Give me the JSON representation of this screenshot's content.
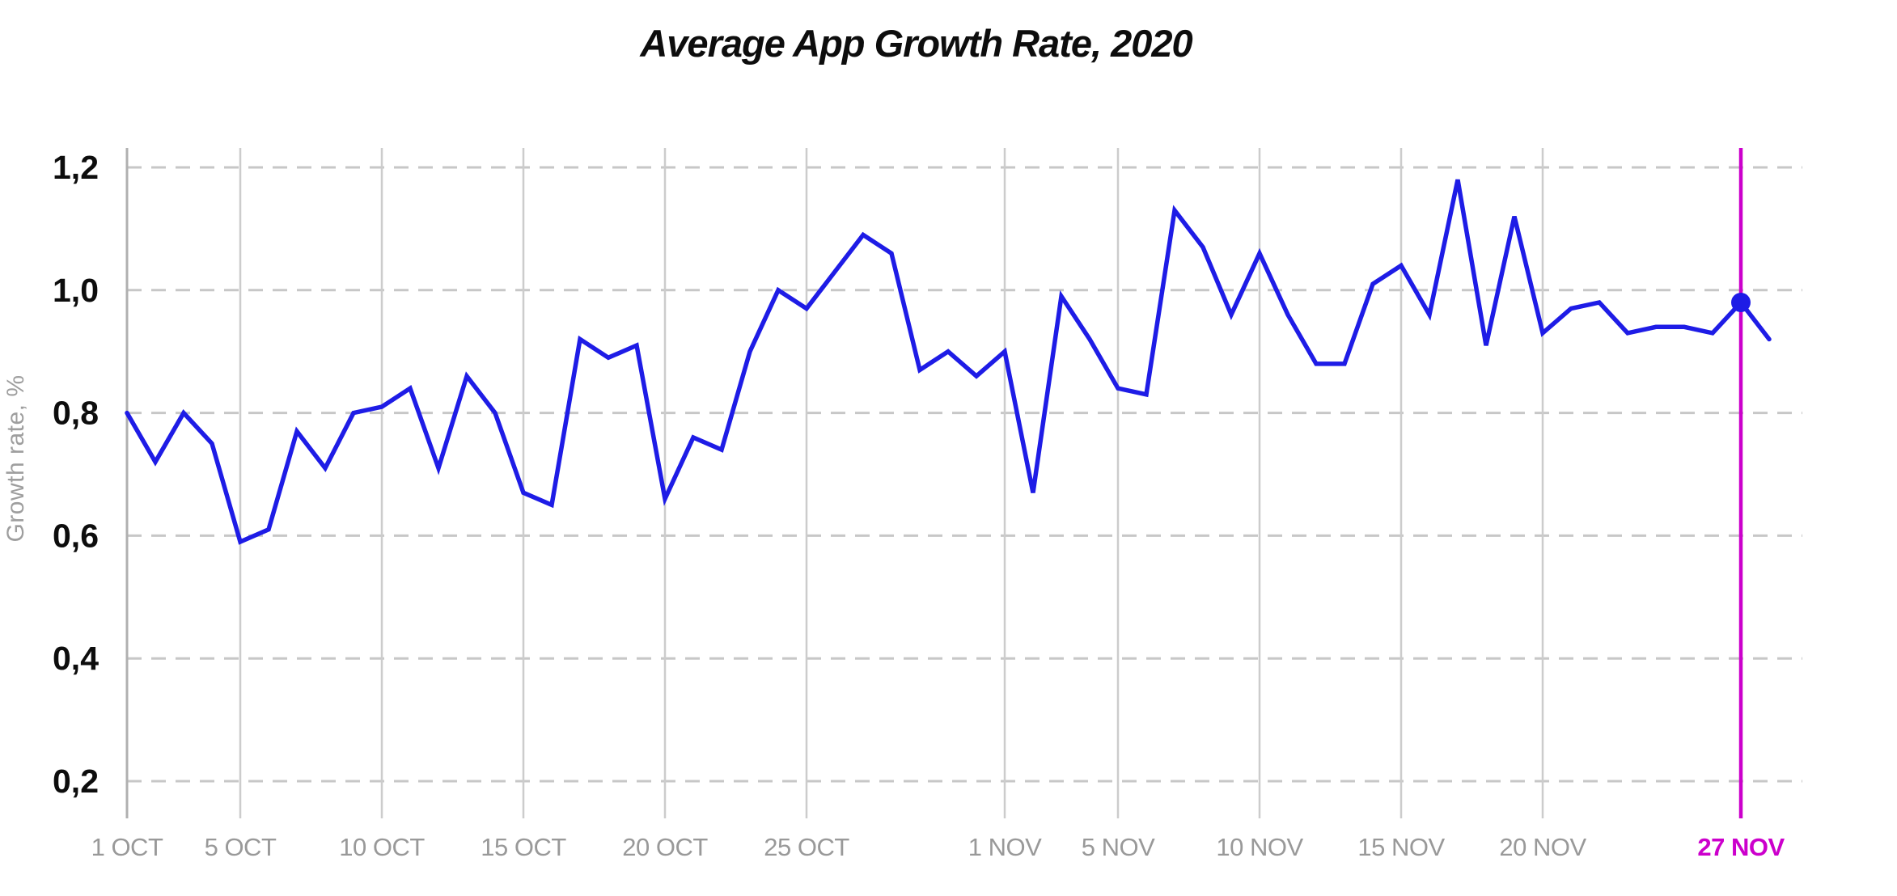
{
  "title": "Average App Growth Rate, 2020",
  "colors": {
    "line": "#1e1ce6",
    "highlight": "#cc00cc",
    "axis_line": "#b0b0b0",
    "v_gridline": "#cccccc",
    "h_gridline": "#c7c7c7",
    "x_label": "#999999",
    "y_label": "#0d0d0d",
    "title_text": "#0d0d0d",
    "y_axis_title": "#9e9e9e",
    "background": "#ffffff"
  },
  "chart_data": {
    "type": "line",
    "title": "Average App Growth Rate, 2020",
    "xlabel": "",
    "ylabel": "Growth rate, %",
    "ylim": [
      0.2,
      1.2
    ],
    "grid": {
      "horizontal": "dashed",
      "vertical": "solid"
    },
    "legend_position": "none",
    "decimal_separator": ",",
    "y_ticks": [
      {
        "value": 1.2,
        "label": "1,2"
      },
      {
        "value": 1.0,
        "label": "1,0"
      },
      {
        "value": 0.8,
        "label": "0,8"
      },
      {
        "value": 0.6,
        "label": "0,6"
      },
      {
        "value": 0.4,
        "label": "0,4"
      },
      {
        "value": 0.2,
        "label": "0,2"
      }
    ],
    "x_ticks": [
      {
        "label": "1 OCT",
        "day": 0,
        "highlight": false
      },
      {
        "label": "5 OCT",
        "day": 4,
        "highlight": false
      },
      {
        "label": "10 OCT",
        "day": 9,
        "highlight": false
      },
      {
        "label": "15 OCT",
        "day": 14,
        "highlight": false
      },
      {
        "label": "20 OCT",
        "day": 19,
        "highlight": false
      },
      {
        "label": "25 OCT",
        "day": 24,
        "highlight": false
      },
      {
        "label": "1 NOV",
        "day": 31,
        "highlight": false
      },
      {
        "label": "5 NOV",
        "day": 35,
        "highlight": false
      },
      {
        "label": "10 NOV",
        "day": 40,
        "highlight": false
      },
      {
        "label": "15 NOV",
        "day": 45,
        "highlight": false
      },
      {
        "label": "20 NOV",
        "day": 50,
        "highlight": false
      },
      {
        "label": "27 NOV",
        "day": 57,
        "highlight": true
      }
    ],
    "highlight": {
      "label": "27 NOV",
      "day": 57,
      "value": 0.98
    },
    "points": [
      {
        "date": "1 OCT",
        "value": 0.8
      },
      {
        "date": "2 OCT",
        "value": 0.72
      },
      {
        "date": "3 OCT",
        "value": 0.8
      },
      {
        "date": "4 OCT",
        "value": 0.75
      },
      {
        "date": "5 OCT",
        "value": 0.59
      },
      {
        "date": "6 OCT",
        "value": 0.61
      },
      {
        "date": "7 OCT",
        "value": 0.77
      },
      {
        "date": "8 OCT",
        "value": 0.71
      },
      {
        "date": "9 OCT",
        "value": 0.8
      },
      {
        "date": "10 OCT",
        "value": 0.81
      },
      {
        "date": "11 OCT",
        "value": 0.84
      },
      {
        "date": "12 OCT",
        "value": 0.71
      },
      {
        "date": "13 OCT",
        "value": 0.86
      },
      {
        "date": "14 OCT",
        "value": 0.8
      },
      {
        "date": "15 OCT",
        "value": 0.67
      },
      {
        "date": "16 OCT",
        "value": 0.65
      },
      {
        "date": "17 OCT",
        "value": 0.92
      },
      {
        "date": "18 OCT",
        "value": 0.89
      },
      {
        "date": "19 OCT",
        "value": 0.91
      },
      {
        "date": "20 OCT",
        "value": 0.66
      },
      {
        "date": "21 OCT",
        "value": 0.76
      },
      {
        "date": "22 OCT",
        "value": 0.74
      },
      {
        "date": "23 OCT",
        "value": 0.9
      },
      {
        "date": "24 OCT",
        "value": 1.0
      },
      {
        "date": "25 OCT",
        "value": 0.97
      },
      {
        "date": "26 OCT",
        "value": 1.03
      },
      {
        "date": "27 OCT",
        "value": 1.09
      },
      {
        "date": "28 OCT",
        "value": 1.06
      },
      {
        "date": "29 OCT",
        "value": 0.87
      },
      {
        "date": "30 OCT",
        "value": 0.9
      },
      {
        "date": "31 OCT",
        "value": 0.86
      },
      {
        "date": "1 NOV",
        "value": 0.9
      },
      {
        "date": "2 NOV",
        "value": 0.67
      },
      {
        "date": "3 NOV",
        "value": 0.99
      },
      {
        "date": "4 NOV",
        "value": 0.92
      },
      {
        "date": "5 NOV",
        "value": 0.84
      },
      {
        "date": "6 NOV",
        "value": 0.83
      },
      {
        "date": "7 NOV",
        "value": 1.13
      },
      {
        "date": "8 NOV",
        "value": 1.07
      },
      {
        "date": "9 NOV",
        "value": 0.96
      },
      {
        "date": "10 NOV",
        "value": 1.06
      },
      {
        "date": "11 NOV",
        "value": 0.96
      },
      {
        "date": "12 NOV",
        "value": 0.88
      },
      {
        "date": "13 NOV",
        "value": 0.88
      },
      {
        "date": "14 NOV",
        "value": 1.01
      },
      {
        "date": "15 NOV",
        "value": 1.04
      },
      {
        "date": "16 NOV",
        "value": 0.96
      },
      {
        "date": "17 NOV",
        "value": 1.18
      },
      {
        "date": "18 NOV",
        "value": 0.91
      },
      {
        "date": "19 NOV",
        "value": 1.12
      },
      {
        "date": "20 NOV",
        "value": 0.93
      },
      {
        "date": "21 NOV",
        "value": 0.97
      },
      {
        "date": "22 NOV",
        "value": 0.98
      },
      {
        "date": "23 NOV",
        "value": 0.93
      },
      {
        "date": "24 NOV",
        "value": 0.94
      },
      {
        "date": "25 NOV",
        "value": 0.94
      },
      {
        "date": "26 NOV",
        "value": 0.93
      },
      {
        "date": "27 NOV",
        "value": 0.98
      },
      {
        "date": "28 NOV",
        "value": 0.92
      }
    ]
  }
}
